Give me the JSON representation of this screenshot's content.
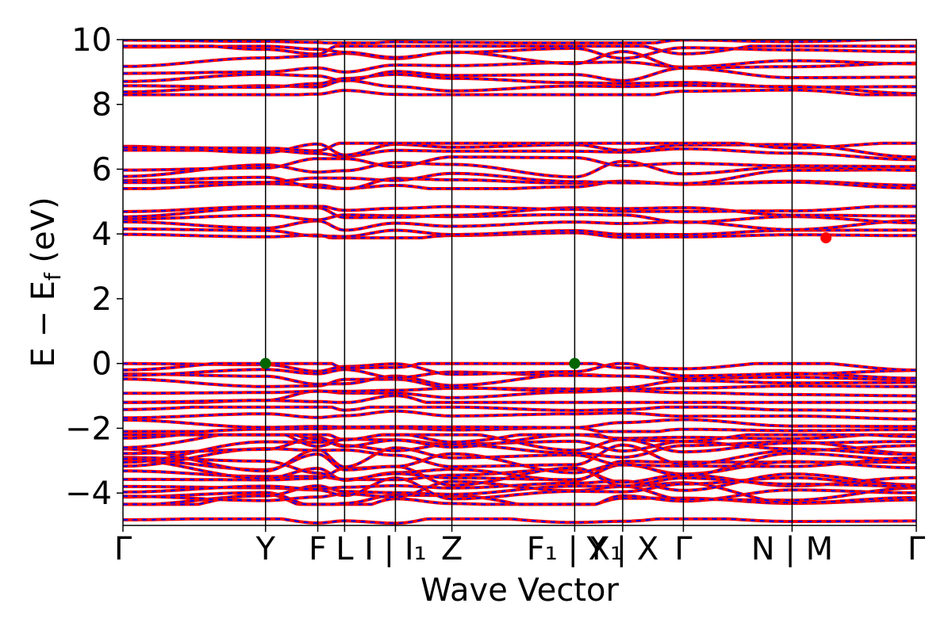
{
  "chart_data": {
    "type": "line",
    "title": "",
    "xlabel": "Wave Vector",
    "ylabel": "E − E",
    "ylabel_sub": "f",
    "ylabel_unit": " (eV)",
    "ylim": [
      -5,
      10
    ],
    "xlim": [
      0,
      5.62
    ],
    "yticks": [
      -4,
      -2,
      0,
      2,
      4,
      6,
      8,
      10
    ],
    "ytick_labels": [
      "−4",
      "−2",
      "0",
      "2",
      "4",
      "6",
      "8",
      "10"
    ],
    "grid": false,
    "legend": "none",
    "kpoints": [
      {
        "x": 0.0,
        "label": "Γ",
        "line": false
      },
      {
        "x": 1.01,
        "label": "Y",
        "line": true
      },
      {
        "x": 1.38,
        "label": "F",
        "line": true
      },
      {
        "x": 1.57,
        "label": "L",
        "line": true
      },
      {
        "x": 1.93,
        "label": "I | I₁",
        "line": true
      },
      {
        "x": 2.33,
        "label": "Z",
        "line": true
      },
      {
        "x": 3.2,
        "label": "F₁ | X₁",
        "line": true
      },
      {
        "x": 3.54,
        "label": "Y | X",
        "line": true
      },
      {
        "x": 3.97,
        "label": "Γ",
        "line": true
      },
      {
        "x": 4.74,
        "label": "N | M",
        "line": true
      },
      {
        "x": 5.62,
        "label": "Γ",
        "line": false
      }
    ],
    "series": [
      {
        "style": "solid",
        "color": "#ff0000"
      },
      {
        "style": "dashed",
        "color": "#0000ff"
      }
    ],
    "markers": [
      {
        "x": 1.01,
        "y": 0.0,
        "color": "#006400",
        "role": "vbm"
      },
      {
        "x": 3.2,
        "y": 0.0,
        "color": "#006400",
        "role": "vbm"
      },
      {
        "x": 4.98,
        "y": 3.88,
        "color": "#ff0000",
        "role": "cbm"
      }
    ],
    "band_groups": [
      {
        "min": -4.35,
        "max": -2.2,
        "count": 18
      },
      {
        "min": -2.1,
        "max": -1.35,
        "count": 4
      },
      {
        "min": -1.2,
        "max": 0.0,
        "count": 8
      },
      {
        "min": 3.88,
        "max": 4.85,
        "count": 6
      },
      {
        "min": 5.4,
        "max": 6.8,
        "count": 8
      },
      {
        "min": 8.3,
        "max": 9.8,
        "count": 8
      },
      {
        "min": 9.9,
        "max": 10.6,
        "count": 2
      },
      {
        "min": -5.6,
        "max": -4.8,
        "count": 3
      }
    ]
  }
}
